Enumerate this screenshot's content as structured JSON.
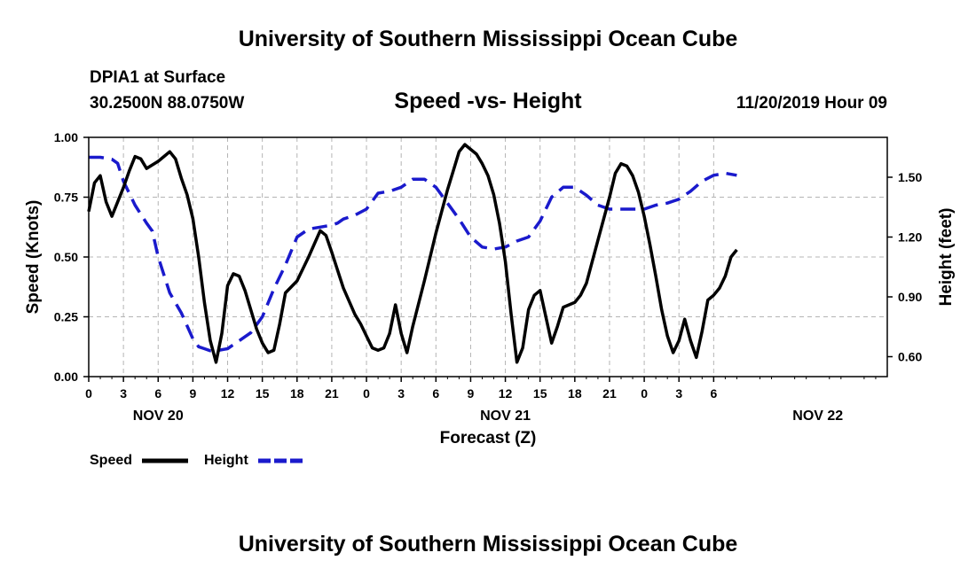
{
  "header": {
    "title": "University of Southern Mississippi Ocean Cube",
    "station_name": "DPIA1 at Surface",
    "station_coords": "30.2500N 88.0750W",
    "subtitle": "Speed -vs- Height",
    "datetime": "11/20/2019 Hour 09"
  },
  "footer": {
    "title": "University of Southern Mississippi Ocean Cube"
  },
  "chart_data": {
    "type": "line",
    "title": "Speed -vs- Height",
    "xlabel": "Forecast (Z)",
    "ylabel_left": "Speed (Knots)",
    "ylabel_right": "Height (feet)",
    "x_hours_range": [
      0,
      69
    ],
    "x_tick_labels": [
      "0",
      "3",
      "6",
      "9",
      "12",
      "15",
      "18",
      "21",
      "0",
      "3",
      "6",
      "9",
      "12",
      "15",
      "18",
      "21",
      "0",
      "3",
      "6"
    ],
    "x_tick_hours": [
      0,
      3,
      6,
      9,
      12,
      15,
      18,
      21,
      24,
      27,
      30,
      33,
      36,
      39,
      42,
      45,
      48,
      51,
      54
    ],
    "day_labels": [
      {
        "label": "NOV 20",
        "hour": 6
      },
      {
        "label": "NOV 21",
        "hour": 36
      },
      {
        "label": "NOV 22",
        "hour": 63
      }
    ],
    "ylim_left": [
      0,
      1
    ],
    "yticks_left": [
      "0.00",
      "0.25",
      "0.50",
      "0.75",
      "1.00"
    ],
    "ylim_right": [
      0.5,
      1.7
    ],
    "yticks_right": [
      "0.60",
      "0.90",
      "1.20",
      "1.50"
    ],
    "grid": true,
    "legend": [
      {
        "name": "Speed",
        "color": "#000000",
        "style": "solid"
      },
      {
        "name": "Height",
        "color": "#1a1acc",
        "style": "dashed"
      }
    ],
    "series": [
      {
        "name": "Speed",
        "color": "#000000",
        "points": [
          [
            0,
            0.69
          ],
          [
            0.5,
            0.81
          ],
          [
            1,
            0.84
          ],
          [
            1.5,
            0.73
          ],
          [
            2,
            0.67
          ],
          [
            3,
            0.79
          ],
          [
            3.5,
            0.86
          ],
          [
            4,
            0.92
          ],
          [
            4.5,
            0.91
          ],
          [
            5,
            0.87
          ],
          [
            6,
            0.9
          ],
          [
            6.5,
            0.92
          ],
          [
            7,
            0.94
          ],
          [
            7.5,
            0.91
          ],
          [
            8,
            0.83
          ],
          [
            8.5,
            0.76
          ],
          [
            9,
            0.66
          ],
          [
            9.5,
            0.5
          ],
          [
            10,
            0.31
          ],
          [
            10.5,
            0.15
          ],
          [
            11,
            0.06
          ],
          [
            11.5,
            0.18
          ],
          [
            12,
            0.38
          ],
          [
            12.5,
            0.43
          ],
          [
            13,
            0.42
          ],
          [
            13.5,
            0.36
          ],
          [
            14,
            0.28
          ],
          [
            14.5,
            0.2
          ],
          [
            15,
            0.14
          ],
          [
            15.5,
            0.1
          ],
          [
            16,
            0.11
          ],
          [
            16.5,
            0.22
          ],
          [
            17,
            0.35
          ],
          [
            18,
            0.4
          ],
          [
            19,
            0.5
          ],
          [
            20,
            0.61
          ],
          [
            20.5,
            0.59
          ],
          [
            21,
            0.52
          ],
          [
            22,
            0.37
          ],
          [
            23,
            0.26
          ],
          [
            23.5,
            0.22
          ],
          [
            24,
            0.17
          ],
          [
            24.5,
            0.12
          ],
          [
            25,
            0.11
          ],
          [
            25.5,
            0.12
          ],
          [
            26,
            0.18
          ],
          [
            26.5,
            0.3
          ],
          [
            27,
            0.18
          ],
          [
            27.5,
            0.1
          ],
          [
            28,
            0.21
          ],
          [
            29,
            0.4
          ],
          [
            30,
            0.6
          ],
          [
            31,
            0.78
          ],
          [
            31.5,
            0.86
          ],
          [
            32,
            0.94
          ],
          [
            32.5,
            0.97
          ],
          [
            33,
            0.95
          ],
          [
            33.5,
            0.93
          ],
          [
            34,
            0.89
          ],
          [
            34.5,
            0.84
          ],
          [
            35,
            0.76
          ],
          [
            35.5,
            0.64
          ],
          [
            36,
            0.48
          ],
          [
            36.5,
            0.26
          ],
          [
            37,
            0.06
          ],
          [
            37.5,
            0.12
          ],
          [
            38,
            0.28
          ],
          [
            38.5,
            0.34
          ],
          [
            39,
            0.36
          ],
          [
            39.5,
            0.25
          ],
          [
            40,
            0.14
          ],
          [
            40.5,
            0.21
          ],
          [
            41,
            0.29
          ],
          [
            42,
            0.31
          ],
          [
            42.5,
            0.34
          ],
          [
            43,
            0.39
          ],
          [
            44,
            0.57
          ],
          [
            45,
            0.75
          ],
          [
            45.5,
            0.85
          ],
          [
            46,
            0.89
          ],
          [
            46.5,
            0.88
          ],
          [
            47,
            0.84
          ],
          [
            47.5,
            0.77
          ],
          [
            48,
            0.67
          ],
          [
            48.5,
            0.55
          ],
          [
            49,
            0.42
          ],
          [
            49.5,
            0.28
          ],
          [
            50,
            0.17
          ],
          [
            50.5,
            0.1
          ],
          [
            51,
            0.15
          ],
          [
            51.5,
            0.24
          ],
          [
            52,
            0.15
          ],
          [
            52.5,
            0.08
          ],
          [
            53,
            0.19
          ],
          [
            53.5,
            0.32
          ],
          [
            54,
            0.34
          ],
          [
            54.5,
            0.37
          ],
          [
            55,
            0.42
          ],
          [
            55.5,
            0.5
          ],
          [
            56,
            0.53
          ]
        ]
      },
      {
        "name": "Height",
        "color": "#1a1acc",
        "points": [
          [
            0,
            1.6
          ],
          [
            0.5,
            1.6
          ],
          [
            1,
            1.6
          ],
          [
            2,
            1.59
          ],
          [
            2.5,
            1.57
          ],
          [
            3,
            1.48
          ],
          [
            4,
            1.36
          ],
          [
            5,
            1.27
          ],
          [
            5.5,
            1.23
          ],
          [
            6,
            1.1
          ],
          [
            6.5,
            1.01
          ],
          [
            7,
            0.92
          ],
          [
            8,
            0.82
          ],
          [
            9,
            0.69
          ],
          [
            9.5,
            0.65
          ],
          [
            10,
            0.64
          ],
          [
            10.5,
            0.63
          ],
          [
            11,
            0.63
          ],
          [
            12,
            0.64
          ],
          [
            13,
            0.68
          ],
          [
            14,
            0.72
          ],
          [
            15,
            0.8
          ],
          [
            16,
            0.94
          ],
          [
            17,
            1.06
          ],
          [
            18,
            1.2
          ],
          [
            19,
            1.24
          ],
          [
            20,
            1.25
          ],
          [
            21,
            1.26
          ],
          [
            21.5,
            1.27
          ],
          [
            22,
            1.29
          ],
          [
            23,
            1.31
          ],
          [
            24,
            1.34
          ],
          [
            25,
            1.42
          ],
          [
            26,
            1.43
          ],
          [
            27,
            1.45
          ],
          [
            28,
            1.49
          ],
          [
            29,
            1.49
          ],
          [
            30,
            1.45
          ],
          [
            31,
            1.37
          ],
          [
            32,
            1.29
          ],
          [
            33,
            1.2
          ],
          [
            34,
            1.15
          ],
          [
            35,
            1.14
          ],
          [
            36,
            1.15
          ],
          [
            37,
            1.18
          ],
          [
            38,
            1.2
          ],
          [
            39,
            1.28
          ],
          [
            40,
            1.4
          ],
          [
            41,
            1.45
          ],
          [
            42,
            1.45
          ],
          [
            43,
            1.41
          ],
          [
            44,
            1.36
          ],
          [
            45,
            1.34
          ],
          [
            46,
            1.34
          ],
          [
            47,
            1.34
          ],
          [
            48,
            1.34
          ],
          [
            49,
            1.36
          ],
          [
            50,
            1.37
          ],
          [
            51,
            1.39
          ],
          [
            52,
            1.43
          ],
          [
            53,
            1.48
          ],
          [
            54,
            1.51
          ],
          [
            55,
            1.52
          ],
          [
            56,
            1.51
          ]
        ]
      }
    ]
  }
}
